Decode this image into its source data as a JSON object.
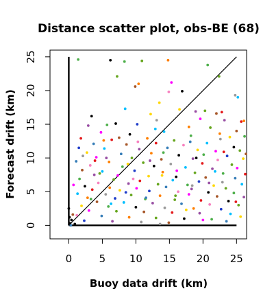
{
  "chart_data": {
    "type": "scatter",
    "title": "Distance scatter plot, obs-BE (68)",
    "xlabel": "Buoy data drift (km)",
    "ylabel": "Forecast drift (km)",
    "xlim": [
      -2.8,
      26.5
    ],
    "ylim": [
      -2,
      26
    ],
    "xticks": [
      "0",
      "5",
      "10",
      "15",
      "20",
      "25"
    ],
    "yticks": [
      "0",
      "5",
      "10",
      "15",
      "20",
      "25"
    ],
    "grid": false,
    "reference_lines": [
      {
        "type": "diagonal",
        "x": [
          0,
          25
        ],
        "y": [
          0,
          25
        ],
        "color": "#000000"
      },
      {
        "type": "vertical",
        "x": [
          0,
          0
        ],
        "y": [
          0,
          25
        ],
        "color": "#000000"
      },
      {
        "type": "horizontal",
        "x": [
          0,
          25
        ],
        "y": [
          0,
          0
        ],
        "color": "#000000"
      }
    ],
    "palette": [
      "#e41a1c",
      "#377eb8",
      "#4daf4a",
      "#984ea3",
      "#ff7f00",
      "#ffd700",
      "#a65628",
      "#f781bf",
      "#999999",
      "#00bfff",
      "#ff00ff",
      "#000000",
      "#66a61e",
      "#1f3dc9",
      "#8b0000"
    ],
    "points": [
      [
        1.4,
        24.6,
        2
      ],
      [
        6.2,
        24.5,
        11
      ],
      [
        8.3,
        24.3,
        2
      ],
      [
        10.9,
        24.4,
        12
      ],
      [
        14.8,
        24.5,
        4
      ],
      [
        20.7,
        23.8,
        2
      ],
      [
        22.4,
        22.1,
        12
      ],
      [
        7.2,
        22.1,
        12
      ],
      [
        9.9,
        20.6,
        6
      ],
      [
        10.4,
        21.0,
        4
      ],
      [
        15.3,
        21.2,
        10
      ],
      [
        16.9,
        19.9,
        11
      ],
      [
        24.8,
        19.3,
        8
      ],
      [
        25.2,
        19.0,
        9
      ],
      [
        14.9,
        19.8,
        7
      ],
      [
        13.5,
        18.2,
        5
      ],
      [
        8.4,
        17.3,
        9
      ],
      [
        16.5,
        17.2,
        5
      ],
      [
        20.3,
        17.0,
        12
      ],
      [
        22.0,
        16.6,
        6
      ],
      [
        22.8,
        16.8,
        0
      ],
      [
        18.9,
        16.9,
        3
      ],
      [
        12.2,
        16.5,
        5
      ],
      [
        3.4,
        16.2,
        11
      ],
      [
        25.7,
        15.4,
        0
      ],
      [
        26.1,
        15.5,
        4
      ],
      [
        13.1,
        15.6,
        8
      ],
      [
        7.0,
        15.1,
        11
      ],
      [
        19.6,
        15.8,
        10
      ],
      [
        23.2,
        15.6,
        3
      ],
      [
        2.9,
        14.8,
        3
      ],
      [
        5.7,
        14.9,
        2
      ],
      [
        10.2,
        15.0,
        13
      ],
      [
        17.9,
        14.6,
        4
      ],
      [
        21.1,
        14.5,
        12
      ],
      [
        25.0,
        14.0,
        6
      ],
      [
        4.8,
        13.8,
        10
      ],
      [
        9.1,
        13.5,
        11
      ],
      [
        14.2,
        13.9,
        9
      ],
      [
        18.2,
        13.3,
        2
      ],
      [
        24.0,
        13.1,
        5
      ],
      [
        26.2,
        13.2,
        2
      ],
      [
        1.8,
        12.9,
        0
      ],
      [
        6.4,
        12.7,
        0
      ],
      [
        11.7,
        12.9,
        4
      ],
      [
        15.7,
        12.6,
        12
      ],
      [
        20.6,
        12.2,
        9
      ],
      [
        22.6,
        12.8,
        8
      ],
      [
        3.7,
        12.1,
        1
      ],
      [
        8.6,
        12.0,
        6
      ],
      [
        13.0,
        12.2,
        0
      ],
      [
        17.1,
        11.9,
        7
      ],
      [
        24.6,
        11.6,
        11
      ],
      [
        1.5,
        11.5,
        13
      ],
      [
        5.3,
        11.4,
        9
      ],
      [
        10.5,
        11.3,
        3
      ],
      [
        14.7,
        11.5,
        1
      ],
      [
        19.2,
        11.2,
        5
      ],
      [
        21.9,
        11.0,
        10
      ],
      [
        25.5,
        11.1,
        12
      ],
      [
        2.7,
        10.8,
        5
      ],
      [
        7.8,
        10.6,
        1
      ],
      [
        12.3,
        10.7,
        4
      ],
      [
        16.4,
        10.4,
        11
      ],
      [
        20.1,
        10.5,
        2
      ],
      [
        23.6,
        10.3,
        13
      ],
      [
        4.1,
        10.1,
        10
      ],
      [
        9.4,
        10.0,
        12
      ],
      [
        13.8,
        9.8,
        6
      ],
      [
        18.5,
        9.9,
        3
      ],
      [
        22.2,
        9.7,
        7
      ],
      [
        26.0,
        9.9,
        5
      ],
      [
        1.1,
        9.5,
        1
      ],
      [
        6.0,
        9.4,
        4
      ],
      [
        11.1,
        9.3,
        12
      ],
      [
        15.2,
        9.1,
        8
      ],
      [
        19.9,
        9.2,
        0
      ],
      [
        24.3,
        9.0,
        12
      ],
      [
        3.2,
        8.9,
        7
      ],
      [
        8.0,
        8.7,
        2
      ],
      [
        12.7,
        8.8,
        11
      ],
      [
        17.4,
        8.6,
        9
      ],
      [
        21.4,
        8.4,
        3
      ],
      [
        25.1,
        8.5,
        10
      ],
      [
        2.0,
        8.2,
        6
      ],
      [
        5.0,
        8.0,
        9
      ],
      [
        9.8,
        8.1,
        13
      ],
      [
        14.0,
        7.9,
        4
      ],
      [
        18.8,
        7.8,
        12
      ],
      [
        23.0,
        7.7,
        2
      ],
      [
        26.3,
        7.6,
        0
      ],
      [
        3.8,
        7.5,
        3
      ],
      [
        7.3,
        7.4,
        10
      ],
      [
        11.9,
        7.3,
        5
      ],
      [
        16.0,
        7.2,
        11
      ],
      [
        20.4,
        7.1,
        6
      ],
      [
        24.8,
        7.0,
        1
      ],
      [
        1.6,
        6.9,
        2
      ],
      [
        6.7,
        6.8,
        12
      ],
      [
        10.6,
        6.6,
        0
      ],
      [
        15.5,
        6.7,
        9
      ],
      [
        19.4,
        6.5,
        13
      ],
      [
        22.9,
        6.4,
        8
      ],
      [
        4.4,
        6.3,
        7
      ],
      [
        8.9,
        6.2,
        3
      ],
      [
        13.3,
        6.1,
        12
      ],
      [
        17.7,
        6.0,
        2
      ],
      [
        21.6,
        5.9,
        5
      ],
      [
        25.8,
        6.1,
        9
      ],
      [
        2.4,
        5.8,
        11
      ],
      [
        6.1,
        5.6,
        4
      ],
      [
        10.1,
        5.5,
        10
      ],
      [
        14.5,
        5.7,
        1
      ],
      [
        18.3,
        5.4,
        3
      ],
      [
        23.4,
        5.5,
        12
      ],
      [
        3.5,
        5.3,
        0
      ],
      [
        7.6,
        5.2,
        5
      ],
      [
        12.0,
        5.1,
        13
      ],
      [
        16.3,
        5.0,
        7
      ],
      [
        20.8,
        4.9,
        11
      ],
      [
        24.6,
        4.8,
        2
      ],
      [
        1.3,
        4.7,
        9
      ],
      [
        5.5,
        4.6,
        8
      ],
      [
        9.3,
        4.5,
        12
      ],
      [
        13.6,
        4.4,
        4
      ],
      [
        17.9,
        4.6,
        10
      ],
      [
        22.1,
        4.3,
        6
      ],
      [
        26.1,
        4.2,
        3
      ],
      [
        2.8,
        4.1,
        4
      ],
      [
        6.9,
        4.0,
        13
      ],
      [
        11.4,
        3.9,
        2
      ],
      [
        15.8,
        3.8,
        12
      ],
      [
        19.7,
        3.7,
        0
      ],
      [
        23.8,
        3.6,
        11
      ],
      [
        4.2,
        3.5,
        6
      ],
      [
        8.2,
        3.4,
        9
      ],
      [
        12.5,
        3.3,
        3
      ],
      [
        16.8,
        3.2,
        1
      ],
      [
        21.0,
        3.1,
        7
      ],
      [
        25.3,
        3.0,
        12
      ],
      [
        1.9,
        2.9,
        5
      ],
      [
        5.9,
        2.8,
        2
      ],
      [
        10.0,
        2.7,
        11
      ],
      [
        14.3,
        2.6,
        8
      ],
      [
        18.6,
        2.5,
        4
      ],
      [
        22.7,
        2.4,
        13
      ],
      [
        3.0,
        2.2,
        10
      ],
      [
        7.1,
        2.1,
        12
      ],
      [
        11.2,
        2.0,
        6
      ],
      [
        15.4,
        1.9,
        0
      ],
      [
        19.5,
        1.8,
        3
      ],
      [
        24.1,
        1.7,
        9
      ],
      [
        1.2,
        1.5,
        7
      ],
      [
        4.9,
        1.4,
        1
      ],
      [
        9.0,
        1.2,
        4
      ],
      [
        13.0,
        1.1,
        12
      ],
      [
        17.2,
        1.0,
        11
      ],
      [
        21.3,
        0.9,
        2
      ],
      [
        25.6,
        1.3,
        5
      ],
      [
        0.4,
        0.8,
        11
      ],
      [
        2.3,
        0.7,
        13
      ],
      [
        6.5,
        0.6,
        3
      ],
      [
        10.8,
        0.5,
        8
      ],
      [
        14.9,
        0.4,
        6
      ],
      [
        20.0,
        0.8,
        10
      ],
      [
        23.5,
        0.6,
        1
      ],
      [
        0.0,
        2.5,
        11
      ],
      [
        0.1,
        1.2,
        11
      ],
      [
        0.2,
        0.3,
        11
      ],
      [
        0.9,
        0.2,
        11
      ],
      [
        13.6,
        0.2,
        8
      ],
      [
        0.3,
        0.0,
        1
      ],
      [
        0.6,
        1.6,
        6
      ],
      [
        3.9,
        9.6,
        0
      ],
      [
        5.2,
        12.6,
        4
      ],
      [
        7.5,
        13.0,
        6
      ],
      [
        12.9,
        14.3,
        9
      ],
      [
        18.1,
        12.4,
        1
      ],
      [
        2.1,
        10.3,
        8
      ],
      [
        8.8,
        9.1,
        5
      ],
      [
        16.1,
        8.1,
        10
      ],
      [
        20.9,
        6.3,
        3
      ],
      [
        11.5,
        4.1,
        1
      ],
      [
        6.3,
        3.2,
        9
      ],
      [
        24.9,
        3.5,
        0
      ],
      [
        17.5,
        2.3,
        5
      ],
      [
        9.6,
        6.9,
        7
      ],
      [
        4.6,
        7.7,
        12
      ],
      [
        14.1,
        10.8,
        2
      ],
      [
        22.5,
        13.6,
        4
      ],
      [
        19.0,
        10.0,
        11
      ],
      [
        26.4,
        10.6,
        6
      ],
      [
        0.7,
        6.0,
        10
      ],
      [
        12.1,
        9.6,
        3
      ],
      [
        15.9,
        4.4,
        12
      ],
      [
        21.8,
        8.0,
        9
      ],
      [
        3.3,
        3.9,
        2
      ],
      [
        8.5,
        4.9,
        13
      ],
      [
        10.3,
        12.4,
        7
      ],
      [
        13.9,
        7.4,
        5
      ],
      [
        23.1,
        10.9,
        0
      ],
      [
        5.6,
        10.0,
        3
      ],
      [
        18.4,
        5.9,
        8
      ]
    ]
  }
}
